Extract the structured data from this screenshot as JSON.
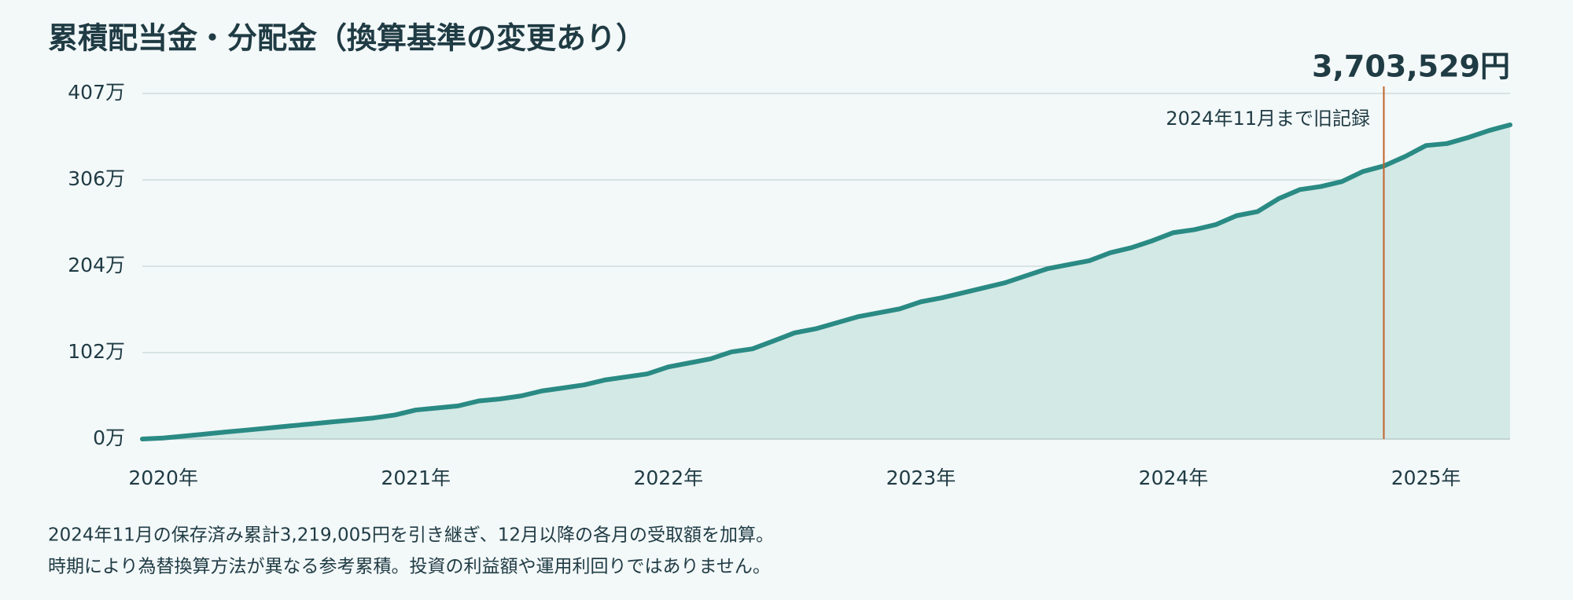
{
  "chart_data": {
    "type": "area",
    "title": "累積配当金・分配金（換算基準の変更あり）",
    "callout": "3,703,529円",
    "annotation": {
      "x": 2024.833,
      "text": "2024年11月まで旧記録"
    },
    "notes": [
      "2024年11月の保存済み累計3,219,005円を引き継ぎ、12月以降の各月の受取額を加算。",
      "時期により為替換算方法が異なる参考累積。投資の利益額や運用利回りではありません。"
    ],
    "color": "#2a8a84",
    "fill": "#d3e9e6",
    "annotation_color": "#c0622b",
    "grid": true,
    "x": [
      2019.917,
      2020,
      2020.083,
      2020.167,
      2020.25,
      2020.333,
      2020.417,
      2020.5,
      2020.583,
      2020.667,
      2020.75,
      2020.833,
      2020.917,
      2021,
      2021.083,
      2021.167,
      2021.25,
      2021.333,
      2021.417,
      2021.5,
      2021.583,
      2021.667,
      2021.75,
      2021.833,
      2021.917,
      2022,
      2022.083,
      2022.167,
      2022.25,
      2022.333,
      2022.417,
      2022.5,
      2022.583,
      2022.667,
      2022.75,
      2022.833,
      2022.917,
      2023,
      2023.083,
      2023.167,
      2023.25,
      2023.333,
      2023.417,
      2023.5,
      2023.583,
      2023.667,
      2023.75,
      2023.833,
      2023.917,
      2024,
      2024.083,
      2024.167,
      2024.25,
      2024.333,
      2024.417,
      2024.5,
      2024.583,
      2024.667,
      2024.75,
      2024.833,
      2024.917,
      2025,
      2025.083,
      2025.167,
      2025.25,
      2025.333
    ],
    "values": [
      0,
      12000,
      35000,
      59000,
      83000,
      106000,
      130000,
      154000,
      177000,
      201000,
      224000,
      248000,
      283000,
      342000,
      366000,
      390000,
      449000,
      472000,
      508000,
      567000,
      602000,
      638000,
      697000,
      732000,
      768000,
      850000,
      897000,
      945000,
      1027000,
      1063000,
      1157000,
      1252000,
      1299000,
      1370000,
      1441000,
      1488000,
      1535000,
      1618000,
      1665000,
      1724000,
      1783000,
      1842000,
      1925000,
      2007000,
      2055000,
      2102000,
      2196000,
      2255000,
      2338000,
      2433000,
      2468000,
      2527000,
      2633000,
      2681000,
      2834000,
      2940000,
      2976000,
      3035000,
      3153000,
      3219005,
      3330000,
      3460000,
      3483000,
      3554000,
      3637000,
      3703529
    ],
    "xlim": [
      2019.917,
      2025.333
    ],
    "xticks": [
      {
        "value": 2020,
        "label": "2020年"
      },
      {
        "value": 2021,
        "label": "2021年"
      },
      {
        "value": 2022,
        "label": "2022年"
      },
      {
        "value": 2023,
        "label": "2023年"
      },
      {
        "value": 2024,
        "label": "2024年"
      },
      {
        "value": 2025,
        "label": "2025年"
      }
    ],
    "ylim": [
      0,
      4073882
    ],
    "yticks": [
      {
        "value": 0,
        "label": "0万"
      },
      {
        "value": 1018471,
        "label": "102万"
      },
      {
        "value": 2036941,
        "label": "204万"
      },
      {
        "value": 3055412,
        "label": "306万"
      },
      {
        "value": 4073882,
        "label": "407万"
      }
    ]
  }
}
